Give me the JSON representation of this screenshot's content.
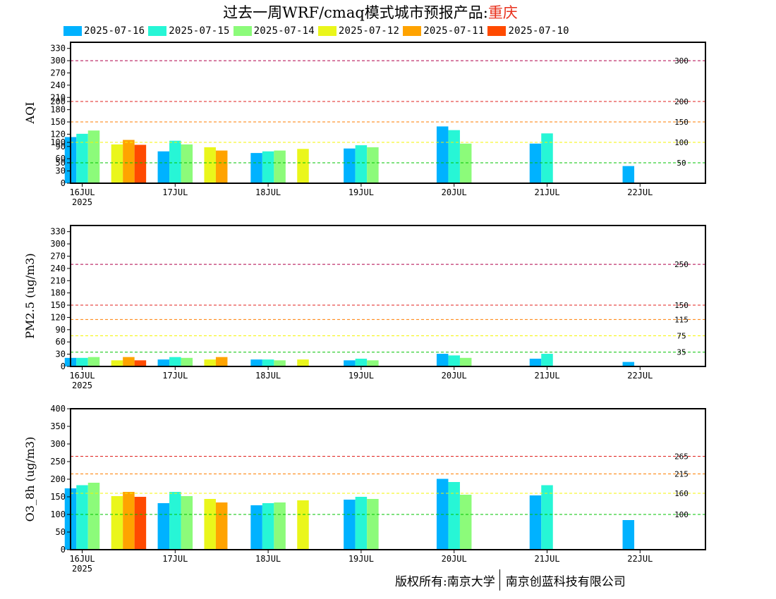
{
  "header": {
    "title_prefix": "过去一周WRF/cmaq模式城市预报产品:",
    "title_city": "重庆"
  },
  "legend": [
    {
      "label": "2025-07-16",
      "color": "#00b2ff"
    },
    {
      "label": "2025-07-15",
      "color": "#27f6d6"
    },
    {
      "label": "2025-07-14",
      "color": "#8cfb7a"
    },
    {
      "label": "2025-07-12",
      "color": "#eaf61b"
    },
    {
      "label": "2025-07-11",
      "color": "#ffa300"
    },
    {
      "label": "2025-07-10",
      "color": "#ff4a00"
    }
  ],
  "footer": {
    "left": "版权所有:南京大学",
    "right": "南京创蓝科技有限公司"
  },
  "chart_data": [
    {
      "type": "bar",
      "ylabel": "AQI",
      "ylim": [
        0,
        345
      ],
      "yticks": [
        0,
        30,
        50,
        60,
        90,
        100,
        120,
        150,
        180,
        200,
        210,
        240,
        270,
        300,
        330
      ],
      "xticks": [
        "16JUL",
        "17JUL",
        "18JUL",
        "19JUL",
        "20JUL",
        "21JUL",
        "22JUL"
      ],
      "year_label": "2025",
      "thresholds": [
        {
          "value": 300,
          "label": "300",
          "color": "#b0004a"
        },
        {
          "value": 200,
          "label": "200",
          "color": "#e0201c"
        },
        {
          "value": 150,
          "label": "150",
          "color": "#ff7e00"
        },
        {
          "value": 100,
          "label": "100",
          "color": "#f4f400"
        },
        {
          "value": 50,
          "label": "50",
          "color": "#00c400"
        }
      ],
      "groups": [
        {
          "x": 0.0,
          "bars": [
            {
              "series": "2025-07-16",
              "value": 113
            },
            {
              "series": "2025-07-15",
              "value": 121
            },
            {
              "series": "2025-07-14",
              "value": 129
            }
          ]
        },
        {
          "x": 0.5,
          "bars": [
            {
              "series": "2025-07-12",
              "value": 95
            },
            {
              "series": "2025-07-11",
              "value": 106
            },
            {
              "series": "2025-07-10",
              "value": 94
            }
          ]
        },
        {
          "x": 1.0,
          "bars": [
            {
              "series": "2025-07-16",
              "value": 78
            },
            {
              "series": "2025-07-15",
              "value": 104
            },
            {
              "series": "2025-07-14",
              "value": 95
            }
          ]
        },
        {
          "x": 1.5,
          "bars": [
            {
              "series": "2025-07-12",
              "value": 88
            },
            {
              "series": "2025-07-11",
              "value": 80
            }
          ]
        },
        {
          "x": 2.0,
          "bars": [
            {
              "series": "2025-07-16",
              "value": 74
            },
            {
              "series": "2025-07-15",
              "value": 78
            },
            {
              "series": "2025-07-14",
              "value": 80
            }
          ]
        },
        {
          "x": 2.5,
          "bars": [
            {
              "series": "2025-07-12",
              "value": 84
            }
          ]
        },
        {
          "x": 3.0,
          "bars": [
            {
              "series": "2025-07-16",
              "value": 85
            },
            {
              "series": "2025-07-15",
              "value": 93
            },
            {
              "series": "2025-07-14",
              "value": 88
            }
          ]
        },
        {
          "x": 4.0,
          "bars": [
            {
              "series": "2025-07-16",
              "value": 139
            },
            {
              "series": "2025-07-15",
              "value": 130
            },
            {
              "series": "2025-07-14",
              "value": 97
            }
          ]
        },
        {
          "x": 5.0,
          "bars": [
            {
              "series": "2025-07-16",
              "value": 97
            },
            {
              "series": "2025-07-15",
              "value": 122
            }
          ]
        },
        {
          "x": 6.0,
          "bars": [
            {
              "series": "2025-07-16",
              "value": 42
            }
          ]
        }
      ]
    },
    {
      "type": "bar",
      "ylabel": "PM2.5 (ug/m3)",
      "ylim": [
        0,
        345
      ],
      "yticks": [
        0,
        30,
        60,
        90,
        120,
        150,
        180,
        210,
        240,
        270,
        300,
        330
      ],
      "xticks": [
        "16JUL",
        "17JUL",
        "18JUL",
        "19JUL",
        "20JUL",
        "21JUL",
        "22JUL"
      ],
      "year_label": "2025",
      "thresholds": [
        {
          "value": 250,
          "label": "250",
          "color": "#b0004a"
        },
        {
          "value": 150,
          "label": "150",
          "color": "#e0201c"
        },
        {
          "value": 115,
          "label": "115",
          "color": "#ff7e00"
        },
        {
          "value": 75,
          "label": "75",
          "color": "#f4f400"
        },
        {
          "value": 35,
          "label": "35",
          "color": "#00c400"
        }
      ],
      "groups": [
        {
          "x": 0.0,
          "bars": [
            {
              "series": "2025-07-16",
              "value": 21
            },
            {
              "series": "2025-07-15",
              "value": 21
            },
            {
              "series": "2025-07-14",
              "value": 23
            }
          ]
        },
        {
          "x": 0.5,
          "bars": [
            {
              "series": "2025-07-12",
              "value": 15
            },
            {
              "series": "2025-07-11",
              "value": 23
            },
            {
              "series": "2025-07-10",
              "value": 15
            }
          ]
        },
        {
          "x": 1.0,
          "bars": [
            {
              "series": "2025-07-16",
              "value": 17
            },
            {
              "series": "2025-07-15",
              "value": 23
            },
            {
              "series": "2025-07-14",
              "value": 21
            }
          ]
        },
        {
          "x": 1.5,
          "bars": [
            {
              "series": "2025-07-12",
              "value": 17
            },
            {
              "series": "2025-07-11",
              "value": 23
            }
          ]
        },
        {
          "x": 2.0,
          "bars": [
            {
              "series": "2025-07-16",
              "value": 17
            },
            {
              "series": "2025-07-15",
              "value": 17
            },
            {
              "series": "2025-07-14",
              "value": 15
            }
          ]
        },
        {
          "x": 2.5,
          "bars": [
            {
              "series": "2025-07-12",
              "value": 17
            }
          ]
        },
        {
          "x": 3.0,
          "bars": [
            {
              "series": "2025-07-16",
              "value": 15
            },
            {
              "series": "2025-07-15",
              "value": 19
            },
            {
              "series": "2025-07-14",
              "value": 15
            }
          ]
        },
        {
          "x": 4.0,
          "bars": [
            {
              "series": "2025-07-16",
              "value": 31
            },
            {
              "series": "2025-07-15",
              "value": 27
            },
            {
              "series": "2025-07-14",
              "value": 21
            }
          ]
        },
        {
          "x": 5.0,
          "bars": [
            {
              "series": "2025-07-16",
              "value": 19
            },
            {
              "series": "2025-07-15",
              "value": 31
            }
          ]
        },
        {
          "x": 6.0,
          "bars": [
            {
              "series": "2025-07-16",
              "value": 11
            }
          ]
        }
      ]
    },
    {
      "type": "bar",
      "ylabel": "O3_8h (ug/m3)",
      "ylim": [
        0,
        400
      ],
      "yticks": [
        0,
        50,
        100,
        150,
        200,
        250,
        300,
        350,
        400
      ],
      "xticks": [
        "16JUL",
        "17JUL",
        "18JUL",
        "19JUL",
        "20JUL",
        "21JUL",
        "22JUL"
      ],
      "year_label": "2025",
      "thresholds": [
        {
          "value": 265,
          "label": "265",
          "color": "#e0201c"
        },
        {
          "value": 215,
          "label": "215",
          "color": "#ff7e00"
        },
        {
          "value": 160,
          "label": "160",
          "color": "#f4f400"
        },
        {
          "value": 100,
          "label": "100",
          "color": "#00c400"
        }
      ],
      "groups": [
        {
          "x": 0.0,
          "bars": [
            {
              "series": "2025-07-16",
              "value": 174
            },
            {
              "series": "2025-07-15",
              "value": 183
            },
            {
              "series": "2025-07-14",
              "value": 190
            }
          ]
        },
        {
          "x": 0.5,
          "bars": [
            {
              "series": "2025-07-12",
              "value": 152
            },
            {
              "series": "2025-07-11",
              "value": 164
            },
            {
              "series": "2025-07-10",
              "value": 150
            }
          ]
        },
        {
          "x": 1.0,
          "bars": [
            {
              "series": "2025-07-16",
              "value": 132
            },
            {
              "series": "2025-07-15",
              "value": 164
            },
            {
              "series": "2025-07-14",
              "value": 152
            }
          ]
        },
        {
          "x": 1.5,
          "bars": [
            {
              "series": "2025-07-12",
              "value": 144
            },
            {
              "series": "2025-07-11",
              "value": 134
            }
          ]
        },
        {
          "x": 2.0,
          "bars": [
            {
              "series": "2025-07-16",
              "value": 126
            },
            {
              "series": "2025-07-15",
              "value": 132
            },
            {
              "series": "2025-07-14",
              "value": 134
            }
          ]
        },
        {
          "x": 2.5,
          "bars": [
            {
              "series": "2025-07-12",
              "value": 140
            }
          ]
        },
        {
          "x": 3.0,
          "bars": [
            {
              "series": "2025-07-16",
              "value": 142
            },
            {
              "series": "2025-07-15",
              "value": 150
            },
            {
              "series": "2025-07-14",
              "value": 144
            }
          ]
        },
        {
          "x": 4.0,
          "bars": [
            {
              "series": "2025-07-16",
              "value": 201
            },
            {
              "series": "2025-07-15",
              "value": 192
            },
            {
              "series": "2025-07-14",
              "value": 156
            }
          ]
        },
        {
          "x": 5.0,
          "bars": [
            {
              "series": "2025-07-16",
              "value": 154
            },
            {
              "series": "2025-07-15",
              "value": 183
            }
          ]
        },
        {
          "x": 6.0,
          "bars": [
            {
              "series": "2025-07-16",
              "value": 84
            }
          ]
        }
      ]
    }
  ]
}
